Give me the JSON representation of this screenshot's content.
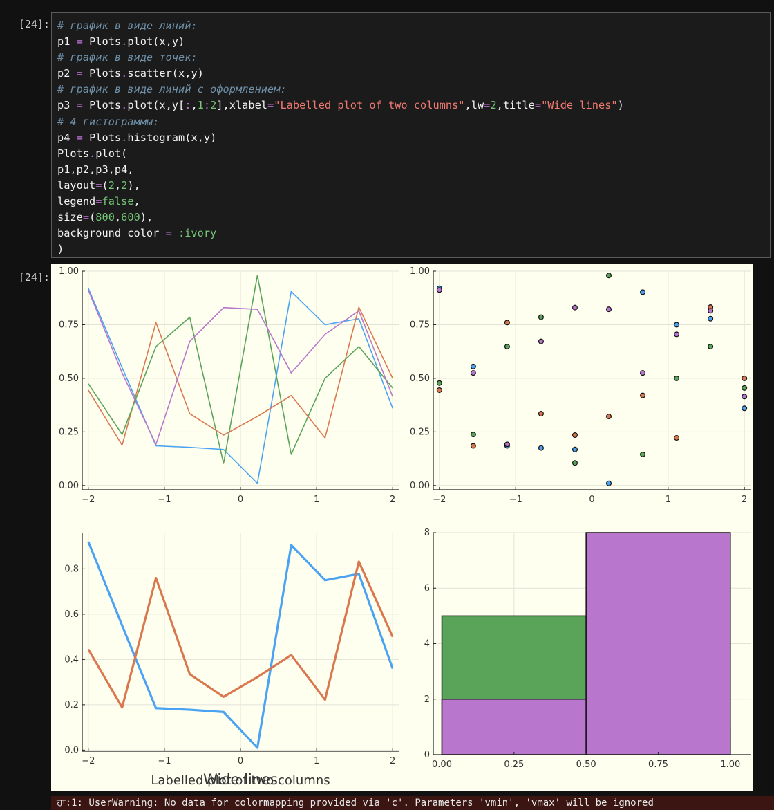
{
  "cell": {
    "input_prompt": "[24]:",
    "output_prompt": "[24]:"
  },
  "code_lines": [
    [
      {
        "t": "# график в виде линий:",
        "c": "c"
      }
    ],
    [
      {
        "t": "p1 "
      },
      {
        "t": "=",
        "c": "o"
      },
      {
        "t": " Plots"
      },
      {
        "t": ".",
        "c": "o"
      },
      {
        "t": "plot(x,y)"
      }
    ],
    [
      {
        "t": "# график в виде точек:",
        "c": "c"
      }
    ],
    [
      {
        "t": "p2 "
      },
      {
        "t": "=",
        "c": "o"
      },
      {
        "t": " Plots"
      },
      {
        "t": ".",
        "c": "o"
      },
      {
        "t": "scatter(x,y)"
      }
    ],
    [
      {
        "t": "# график в виде линий с оформлением:",
        "c": "c"
      }
    ],
    [
      {
        "t": "p3 "
      },
      {
        "t": "=",
        "c": "o"
      },
      {
        "t": " Plots"
      },
      {
        "t": ".",
        "c": "o"
      },
      {
        "t": "plot(x,y["
      },
      {
        "t": ":",
        "c": "o"
      },
      {
        "t": ","
      },
      {
        "t": "1",
        "c": "n"
      },
      {
        "t": ":",
        "c": "o"
      },
      {
        "t": "2",
        "c": "n"
      },
      {
        "t": "],xlabel"
      },
      {
        "t": "=",
        "c": "o"
      },
      {
        "t": "\"Labelled plot of two columns\"",
        "c": "s"
      },
      {
        "t": ",lw"
      },
      {
        "t": "=",
        "c": "o"
      },
      {
        "t": "2",
        "c": "n"
      },
      {
        "t": ",title"
      },
      {
        "t": "=",
        "c": "o"
      },
      {
        "t": "\"Wide lines\"",
        "c": "s"
      },
      {
        "t": ")"
      }
    ],
    [
      {
        "t": "# 4 гистограммы:",
        "c": "c"
      }
    ],
    [
      {
        "t": "p4 "
      },
      {
        "t": "=",
        "c": "o"
      },
      {
        "t": " Plots"
      },
      {
        "t": ".",
        "c": "o"
      },
      {
        "t": "histogram(x,y)"
      }
    ],
    [
      {
        "t": "Plots"
      },
      {
        "t": ".",
        "c": "o"
      },
      {
        "t": "plot("
      }
    ],
    [
      {
        "t": "p1,p2,p3,p4,"
      }
    ],
    [
      {
        "t": "layout"
      },
      {
        "t": "=",
        "c": "o"
      },
      {
        "t": "("
      },
      {
        "t": "2",
        "c": "n"
      },
      {
        "t": ","
      },
      {
        "t": "2",
        "c": "n"
      },
      {
        "t": "),"
      }
    ],
    [
      {
        "t": "legend"
      },
      {
        "t": "=",
        "c": "o"
      },
      {
        "t": "false",
        "c": "k"
      },
      {
        "t": ","
      }
    ],
    [
      {
        "t": "size"
      },
      {
        "t": "=",
        "c": "o"
      },
      {
        "t": "("
      },
      {
        "t": "800",
        "c": "n"
      },
      {
        "t": ","
      },
      {
        "t": "600",
        "c": "n"
      },
      {
        "t": "),"
      }
    ],
    [
      {
        "t": "background_color "
      },
      {
        "t": "=",
        "c": "o"
      },
      {
        "t": " "
      },
      {
        "t": ":ivory",
        "c": "k"
      }
    ],
    [
      {
        "t": ")"
      }
    ]
  ],
  "colors": {
    "series1": "#4aa3f2",
    "series2": "#d9784f",
    "series3": "#5aa45a",
    "series4": "#b876cc",
    "background": "#fffff0"
  },
  "chart_data": [
    {
      "type": "line",
      "x": [
        -2,
        -1.5556,
        -1.1111,
        -0.6667,
        -0.2222,
        0.2222,
        0.6667,
        1.1111,
        1.5556,
        2
      ],
      "series": [
        {
          "values": [
            0.92,
            0.55,
            0.185,
            0.178,
            0.168,
            0.01,
            0.905,
            0.75,
            0.778,
            0.36
          ]
        },
        {
          "values": [
            0.445,
            0.188,
            0.76,
            0.335,
            0.235,
            0.322,
            0.42,
            0.222,
            0.832,
            0.5
          ]
        },
        {
          "values": [
            0.475,
            0.238,
            0.648,
            0.785,
            0.103,
            0.98,
            0.145,
            0.5,
            0.648,
            0.455
          ]
        },
        {
          "values": [
            0.912,
            0.525,
            0.192,
            0.672,
            0.83,
            0.822,
            0.525,
            0.705,
            0.815,
            0.415
          ]
        }
      ],
      "xticks": [
        "−2",
        "−1",
        "0",
        "1",
        "2"
      ],
      "yticks": [
        "0.00",
        "0.25",
        "0.50",
        "0.75",
        "1.00"
      ],
      "xlim": [
        -2.08,
        2.08
      ],
      "ylim": [
        -0.02,
        1.0
      ],
      "title": "",
      "xlabel": "",
      "ylabel": "",
      "grid": true,
      "legend": false
    },
    {
      "type": "scatter",
      "x": [
        -2,
        -1.5556,
        -1.1111,
        -0.6667,
        -0.2222,
        0.2222,
        0.6667,
        1.1111,
        1.5556,
        2
      ],
      "series": [
        {
          "values": [
            0.92,
            0.555,
            0.185,
            0.175,
            0.168,
            0.01,
            0.902,
            0.75,
            0.778,
            0.36
          ]
        },
        {
          "values": [
            0.445,
            0.185,
            0.76,
            0.335,
            0.235,
            0.322,
            0.42,
            0.222,
            0.832,
            0.5
          ]
        },
        {
          "values": [
            0.478,
            0.238,
            0.648,
            0.785,
            0.105,
            0.98,
            0.145,
            0.5,
            0.648,
            0.455
          ]
        },
        {
          "values": [
            0.912,
            0.525,
            0.192,
            0.672,
            0.83,
            0.822,
            0.525,
            0.705,
            0.815,
            0.415
          ]
        }
      ],
      "xticks": [
        "−2",
        "−1",
        "0",
        "1",
        "2"
      ],
      "yticks": [
        "0.00",
        "0.25",
        "0.50",
        "0.75",
        "1.00"
      ],
      "xlim": [
        -2.08,
        2.08
      ],
      "ylim": [
        -0.02,
        1.0
      ],
      "title": "",
      "xlabel": "",
      "ylabel": "",
      "grid": true,
      "legend": false
    },
    {
      "type": "line",
      "title": "Wide lines",
      "xlabel": "Labelled plot of two columns",
      "x": [
        -2,
        -1.5556,
        -1.1111,
        -0.6667,
        -0.2222,
        0.2222,
        0.6667,
        1.1111,
        1.5556,
        2
      ],
      "series": [
        {
          "values": [
            0.92,
            0.55,
            0.185,
            0.178,
            0.168,
            0.01,
            0.905,
            0.75,
            0.778,
            0.36
          ]
        },
        {
          "values": [
            0.445,
            0.188,
            0.76,
            0.335,
            0.235,
            0.322,
            0.42,
            0.222,
            0.832,
            0.5
          ]
        }
      ],
      "xticks": [
        "−2",
        "−1",
        "0",
        "1",
        "2"
      ],
      "yticks": [
        "0.0",
        "0.2",
        "0.4",
        "0.6",
        "0.8"
      ],
      "xlim": [
        -2.08,
        2.08
      ],
      "ylim": [
        -0.005,
        0.96
      ],
      "ylabel": "",
      "grid": true,
      "legend": false,
      "line_width": 2
    },
    {
      "type": "bar",
      "title": "",
      "xlabel": "",
      "ylabel": "",
      "bins": [
        [
          0.0,
          0.5
        ],
        [
          0.5,
          1.0
        ]
      ],
      "series": [
        {
          "values": [
            5,
            1
          ]
        },
        {
          "values": [
            2,
            8
          ]
        }
      ],
      "xticks": [
        "0.00",
        "0.25",
        "0.50",
        "0.75",
        "1.00"
      ],
      "yticks": [
        "0",
        "2",
        "4",
        "6",
        "8"
      ],
      "xlim": [
        -0.03,
        1.07
      ],
      "ylim": [
        0,
        8
      ],
      "grid": true,
      "legend": false
    }
  ],
  "warning": "ਹਾ:1: UserWarning: No data for colormapping provided via 'c'. Parameters 'vmin', 'vmax' will be ignored"
}
